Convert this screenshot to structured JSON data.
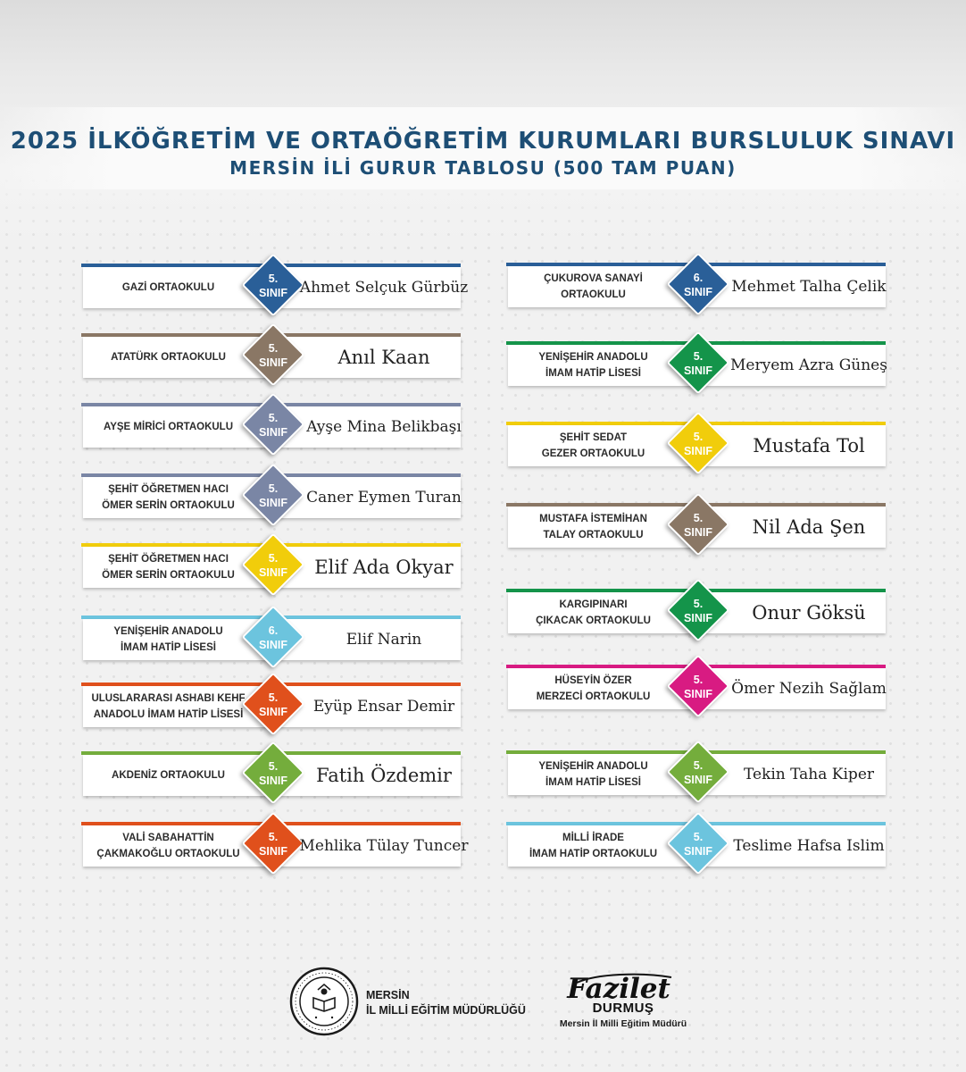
{
  "header": {
    "title_line1": "2025 İLKÖĞRETİM VE ORTAÖĞRETİM KURUMLARI BURSLULUK SINAVI",
    "title_line2": "MERSİN İLİ GURUR TABLOSU (500 TAM PUAN)"
  },
  "left_column": [
    {
      "school": "GAZİ ORTAOKULU",
      "grade": "5.\nSINIF",
      "student": "Ahmet Selçuk Gürbüz",
      "color": "#2a5f98",
      "big": false
    },
    {
      "school": "ATATÜRK ORTAOKULU",
      "grade": "5.\nSINIF",
      "student": "Anıl Kaan",
      "color": "#8a7765",
      "big": true
    },
    {
      "school": "AYŞE MİRİCİ ORTAOKULU",
      "grade": "5.\nSINIF",
      "student": "Ayşe Mina Belikbaşı",
      "color": "#7a86a5",
      "big": false
    },
    {
      "school": "ŞEHİT ÖĞRETMEN HACI\nÖMER SERİN ORTAOKULU",
      "grade": "5.\nSINIF",
      "student": "Caner Eymen Turan",
      "color": "#7a86a5",
      "big": false
    },
    {
      "school": "ŞEHİT ÖĞRETMEN HACI\nÖMER SERİN ORTAOKULU",
      "grade": "5.\nSINIF",
      "student": "Elif Ada Okyar",
      "color": "#f1cd0b",
      "big": true
    },
    {
      "school": "YENİŞEHİR ANADOLU\nİMAM HATİP LİSESİ",
      "grade": "6.\nSINIF",
      "student": "Elif Narin",
      "color": "#6cc4de",
      "big": false
    },
    {
      "school": "ULUSLARARASI ASHABI KEHF\nANADOLU İMAM HATİP LİSESİ",
      "grade": "5.\nSINIF",
      "student": "Eyüp Ensar Demir",
      "color": "#e0501c",
      "big": false
    },
    {
      "school": "AKDENİZ ORTAOKULU",
      "grade": "5.\nSINIF",
      "student": "Fatih Özdemir",
      "color": "#74ad3c",
      "big": true
    },
    {
      "school": "VALİ SABAHATTİN\nÇAKMAKOĞLU ORTAOKULU",
      "grade": "5.\nSINIF",
      "student": "Mehlika Tülay Tuncer",
      "color": "#e0501c",
      "big": false
    }
  ],
  "right_column": [
    {
      "school": "ÇUKUROVA SANAYİ\nORTAOKULU",
      "grade": "6.\nSINIF",
      "student": "Mehmet Talha Çelik",
      "color": "#2a5f98",
      "big": false
    },
    {
      "school": "YENİŞEHİR ANADOLU\nİMAM HATİP LİSESİ",
      "grade": "5.\nSINIF",
      "student": "Meryem Azra Güneş",
      "color": "#14944a",
      "big": false
    },
    {
      "school": "ŞEHİT SEDAT\nGEZER ORTAOKULU",
      "grade": "5.\nSINIF",
      "student": "Mustafa Tol",
      "color": "#f1cd0b",
      "big": true
    },
    {
      "school": "MUSTAFA İSTEMİHAN\nTALAY ORTAOKULU",
      "grade": "5.\nSINIF",
      "student": "Nil Ada Şen",
      "color": "#8a7765",
      "big": true
    },
    {
      "school": "KARGIPINARI\nÇIKACAK ORTAOKULU",
      "grade": "5.\nSINIF",
      "student": "Onur Göksü",
      "color": "#14944a",
      "big": true
    },
    {
      "school": "HÜSEYİN ÖZER\nMERZECİ ORTAOKULU",
      "grade": "5.\nSINIF",
      "student": "Ömer Nezih Sağlam",
      "color": "#d81b82",
      "big": false
    },
    {
      "school": "YENİŞEHİR ANADOLU\nİMAM HATİP LİSESİ",
      "grade": "5.\nSINIF",
      "student": "Tekin Taha Kiper",
      "color": "#74ad3c",
      "big": false
    },
    {
      "school": "MİLLİ İRADE\nİMAM HATİP ORTAOKULU",
      "grade": "5.\nSINIF",
      "student": "Teslime Hafsa Islim",
      "color": "#6cc4de",
      "big": false
    }
  ],
  "footer": {
    "institution_line1": "MERSİN",
    "institution_line2": "İL MİLLİ EĞİTİM MÜDÜRLÜĞÜ",
    "signature_first": "Fazilet",
    "signature_last": "DURMUŞ",
    "signature_role": "Mersin İl Milli Eğitim Müdürü",
    "logo_icon": "ministry-seal-icon"
  }
}
